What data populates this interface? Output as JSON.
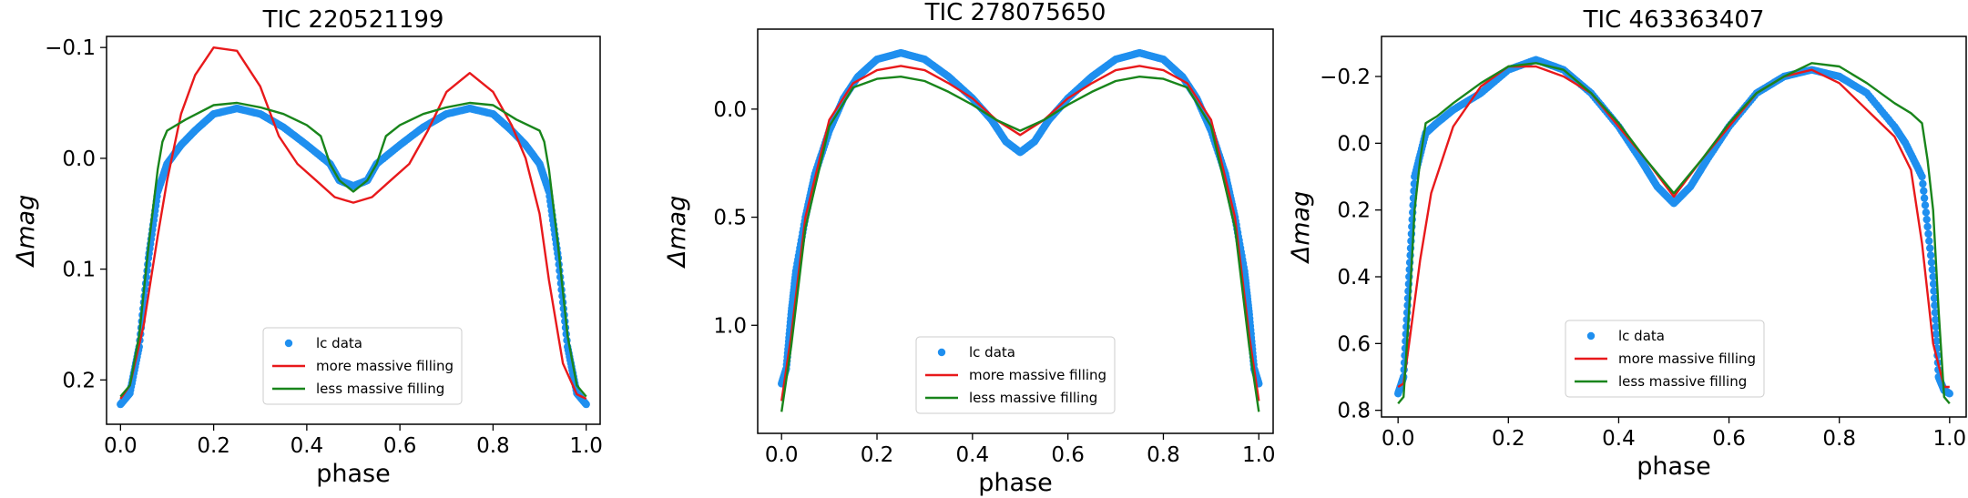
{
  "colors": {
    "data": "#1f8fef",
    "more": "#e8191b",
    "less": "#19851b"
  },
  "legend_labels": {
    "data": "lc data",
    "more": "more massive filling",
    "less": "less massive filling"
  },
  "chart_data": [
    {
      "type": "scatter",
      "title": "TIC 220521199",
      "xlabel": "phase",
      "ylabel": "Δmag",
      "xlim": [
        -0.03,
        1.03
      ],
      "ylim": [
        0.24,
        -0.11
      ],
      "y_inverted": true,
      "xticks": [
        0.0,
        0.2,
        0.4,
        0.6,
        0.8,
        1.0
      ],
      "xtick_labels": [
        "0.0",
        "0.2",
        "0.4",
        "0.6",
        "0.8",
        "1.0"
      ],
      "yticks": [
        -0.1,
        0.0,
        0.1,
        0.2
      ],
      "ytick_labels": [
        "−0.1",
        "0.0",
        "0.1",
        "0.2"
      ],
      "legend_position": "lower center",
      "series": [
        {
          "name": "lc data",
          "kind": "points",
          "color_key": "data",
          "x": [
            0.0,
            0.02,
            0.04,
            0.06,
            0.08,
            0.1,
            0.13,
            0.16,
            0.2,
            0.25,
            0.3,
            0.35,
            0.4,
            0.45,
            0.47,
            0.5,
            0.53,
            0.55,
            0.6,
            0.65,
            0.7,
            0.75,
            0.8,
            0.84,
            0.87,
            0.9,
            0.92,
            0.94,
            0.96,
            0.98,
            1.0
          ],
          "y": [
            0.222,
            0.212,
            0.17,
            0.09,
            0.03,
            0.005,
            -0.012,
            -0.025,
            -0.04,
            -0.045,
            -0.04,
            -0.028,
            -0.012,
            0.005,
            0.02,
            0.025,
            0.02,
            0.005,
            -0.012,
            -0.028,
            -0.04,
            -0.045,
            -0.04,
            -0.025,
            -0.012,
            0.005,
            0.03,
            0.09,
            0.17,
            0.212,
            0.222
          ]
        },
        {
          "name": "more massive filling",
          "kind": "line",
          "color_key": "more",
          "x": [
            0.0,
            0.02,
            0.05,
            0.08,
            0.1,
            0.13,
            0.16,
            0.2,
            0.25,
            0.3,
            0.34,
            0.38,
            0.42,
            0.46,
            0.5,
            0.54,
            0.58,
            0.62,
            0.66,
            0.7,
            0.75,
            0.8,
            0.84,
            0.87,
            0.9,
            0.92,
            0.95,
            0.98,
            1.0
          ],
          "y": [
            0.217,
            0.205,
            0.15,
            0.07,
            0.02,
            -0.04,
            -0.075,
            -0.1,
            -0.097,
            -0.065,
            -0.02,
            0.005,
            0.02,
            0.035,
            0.04,
            0.035,
            0.02,
            0.005,
            -0.025,
            -0.06,
            -0.077,
            -0.06,
            -0.03,
            0.0,
            0.05,
            0.11,
            0.185,
            0.213,
            0.217
          ]
        },
        {
          "name": "less massive filling",
          "kind": "line",
          "color_key": "less",
          "x": [
            0.0,
            0.02,
            0.04,
            0.06,
            0.08,
            0.09,
            0.1,
            0.14,
            0.2,
            0.25,
            0.3,
            0.35,
            0.4,
            0.43,
            0.45,
            0.47,
            0.5,
            0.53,
            0.55,
            0.57,
            0.6,
            0.65,
            0.7,
            0.75,
            0.8,
            0.85,
            0.9,
            0.91,
            0.92,
            0.94,
            0.96,
            0.98,
            1.0
          ],
          "y": [
            0.215,
            0.205,
            0.16,
            0.08,
            0.01,
            -0.015,
            -0.025,
            -0.035,
            -0.048,
            -0.05,
            -0.046,
            -0.04,
            -0.03,
            -0.02,
            0.005,
            0.02,
            0.03,
            0.02,
            0.005,
            -0.02,
            -0.03,
            -0.04,
            -0.046,
            -0.05,
            -0.048,
            -0.035,
            -0.025,
            -0.015,
            0.01,
            0.08,
            0.16,
            0.205,
            0.215
          ]
        }
      ]
    },
    {
      "type": "scatter",
      "title": "TIC 278075650",
      "xlabel": "phase",
      "ylabel": "Δmag",
      "xlim": [
        -0.05,
        1.03
      ],
      "ylim": [
        1.5,
        -0.37
      ],
      "y_inverted": true,
      "xticks": [
        0.0,
        0.2,
        0.4,
        0.6,
        0.8,
        1.0
      ],
      "xtick_labels": [
        "0.0",
        "0.2",
        "0.4",
        "0.6",
        "0.8",
        "1.0"
      ],
      "yticks": [
        0.0,
        0.5,
        1.0
      ],
      "ytick_labels": [
        "0.0",
        "0.5",
        "1.0"
      ],
      "legend_position": "lower center",
      "series": [
        {
          "name": "lc data",
          "kind": "points",
          "color_key": "data",
          "x": [
            0.0,
            0.01,
            0.02,
            0.03,
            0.05,
            0.07,
            0.1,
            0.13,
            0.16,
            0.2,
            0.25,
            0.3,
            0.35,
            0.4,
            0.44,
            0.47,
            0.5,
            0.53,
            0.56,
            0.6,
            0.65,
            0.7,
            0.75,
            0.8,
            0.84,
            0.87,
            0.9,
            0.93,
            0.95,
            0.97,
            0.98,
            0.99,
            1.0
          ],
          "y": [
            1.27,
            1.2,
            0.95,
            0.75,
            0.5,
            0.3,
            0.1,
            -0.05,
            -0.15,
            -0.23,
            -0.26,
            -0.23,
            -0.15,
            -0.05,
            0.05,
            0.15,
            0.2,
            0.15,
            0.05,
            -0.05,
            -0.15,
            -0.23,
            -0.26,
            -0.23,
            -0.15,
            -0.05,
            0.1,
            0.3,
            0.5,
            0.75,
            0.95,
            1.2,
            1.27
          ]
        },
        {
          "name": "more massive filling",
          "kind": "line",
          "color_key": "more",
          "x": [
            0.0,
            0.02,
            0.05,
            0.1,
            0.15,
            0.2,
            0.25,
            0.3,
            0.35,
            0.4,
            0.45,
            0.5,
            0.55,
            0.6,
            0.65,
            0.7,
            0.75,
            0.8,
            0.85,
            0.9,
            0.95,
            0.98,
            1.0
          ],
          "y": [
            1.35,
            1.05,
            0.5,
            0.05,
            -0.12,
            -0.18,
            -0.2,
            -0.18,
            -0.12,
            -0.05,
            0.05,
            0.12,
            0.05,
            -0.05,
            -0.12,
            -0.18,
            -0.2,
            -0.18,
            -0.12,
            0.05,
            0.5,
            1.05,
            1.35
          ]
        },
        {
          "name": "less massive filling",
          "kind": "line",
          "color_key": "less",
          "x": [
            0.0,
            0.02,
            0.05,
            0.1,
            0.15,
            0.2,
            0.25,
            0.3,
            0.35,
            0.4,
            0.45,
            0.5,
            0.55,
            0.6,
            0.65,
            0.7,
            0.75,
            0.8,
            0.85,
            0.9,
            0.95,
            0.98,
            1.0
          ],
          "y": [
            1.4,
            1.1,
            0.55,
            0.08,
            -0.1,
            -0.14,
            -0.15,
            -0.13,
            -0.08,
            -0.02,
            0.05,
            0.1,
            0.05,
            -0.02,
            -0.08,
            -0.13,
            -0.15,
            -0.14,
            -0.1,
            0.08,
            0.55,
            1.1,
            1.4
          ]
        }
      ]
    },
    {
      "type": "scatter",
      "title": "TIC 463363407",
      "xlabel": "phase",
      "ylabel": "Δmag",
      "xlim": [
        -0.03,
        1.03
      ],
      "ylim": [
        0.82,
        -0.32
      ],
      "y_inverted": true,
      "xticks": [
        0.0,
        0.2,
        0.4,
        0.6,
        0.8,
        1.0
      ],
      "xtick_labels": [
        "0.0",
        "0.2",
        "0.4",
        "0.6",
        "0.8",
        "1.0"
      ],
      "yticks": [
        -0.2,
        0.0,
        0.2,
        0.4,
        0.6,
        0.8
      ],
      "ytick_labels": [
        "−0.2",
        "0.0",
        "0.2",
        "0.4",
        "0.6",
        "0.8"
      ],
      "legend_position": "lower center",
      "series": [
        {
          "name": "lc data",
          "kind": "points",
          "color_key": "data",
          "x": [
            0.0,
            0.01,
            0.02,
            0.03,
            0.05,
            0.07,
            0.1,
            0.15,
            0.2,
            0.25,
            0.3,
            0.35,
            0.4,
            0.44,
            0.47,
            0.5,
            0.53,
            0.56,
            0.6,
            0.65,
            0.7,
            0.75,
            0.8,
            0.85,
            0.9,
            0.92,
            0.95,
            0.97,
            0.98,
            0.99,
            1.0
          ],
          "y": [
            0.75,
            0.7,
            0.4,
            0.1,
            -0.03,
            -0.06,
            -0.1,
            -0.15,
            -0.22,
            -0.25,
            -0.22,
            -0.15,
            -0.05,
            0.05,
            0.13,
            0.18,
            0.13,
            0.05,
            -0.05,
            -0.15,
            -0.2,
            -0.22,
            -0.2,
            -0.15,
            -0.05,
            0.0,
            0.1,
            0.4,
            0.7,
            0.74,
            0.75
          ]
        },
        {
          "name": "more massive filling",
          "kind": "line",
          "color_key": "more",
          "x": [
            0.0,
            0.01,
            0.02,
            0.04,
            0.06,
            0.1,
            0.15,
            0.2,
            0.25,
            0.3,
            0.35,
            0.4,
            0.45,
            0.5,
            0.55,
            0.6,
            0.65,
            0.7,
            0.75,
            0.8,
            0.85,
            0.9,
            0.93,
            0.95,
            0.97,
            0.99,
            1.0
          ],
          "y": [
            0.73,
            0.72,
            0.6,
            0.35,
            0.15,
            -0.05,
            -0.17,
            -0.23,
            -0.23,
            -0.2,
            -0.15,
            -0.05,
            0.05,
            0.16,
            0.05,
            -0.05,
            -0.15,
            -0.2,
            -0.22,
            -0.18,
            -0.1,
            -0.02,
            0.08,
            0.3,
            0.6,
            0.73,
            0.73
          ]
        },
        {
          "name": "less massive filling",
          "kind": "line",
          "color_key": "less",
          "x": [
            0.0,
            0.01,
            0.02,
            0.03,
            0.04,
            0.05,
            0.07,
            0.1,
            0.15,
            0.2,
            0.25,
            0.3,
            0.35,
            0.4,
            0.45,
            0.5,
            0.55,
            0.6,
            0.65,
            0.7,
            0.75,
            0.8,
            0.85,
            0.9,
            0.93,
            0.95,
            0.96,
            0.97,
            0.98,
            0.99,
            1.0
          ],
          "y": [
            0.78,
            0.76,
            0.5,
            0.2,
            0.05,
            -0.06,
            -0.08,
            -0.12,
            -0.18,
            -0.23,
            -0.24,
            -0.22,
            -0.15,
            -0.06,
            0.05,
            0.15,
            0.05,
            -0.06,
            -0.15,
            -0.2,
            -0.24,
            -0.23,
            -0.18,
            -0.12,
            -0.09,
            -0.06,
            0.05,
            0.2,
            0.5,
            0.76,
            0.78
          ]
        }
      ]
    }
  ]
}
